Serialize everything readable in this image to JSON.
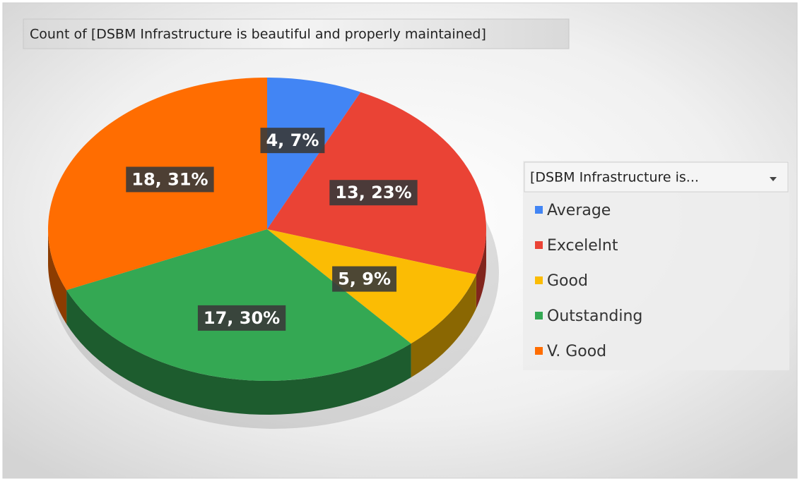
{
  "chart_data": {
    "type": "pie",
    "title": "Count of [DSBM Infrastructure is beautiful and properly maintained]",
    "legend_title": "[DSBM Infrastructure is...",
    "categories": [
      "Average",
      "Excelelnt",
      "Good",
      "Outstanding",
      "V. Good"
    ],
    "values": [
      4,
      13,
      5,
      17,
      18
    ],
    "value_labels": [
      "4, 7%",
      "13, 23%",
      "5, 9%",
      "17, 30%",
      "18, 31%"
    ],
    "colors": [
      "#4285f4",
      "#ea4335",
      "#fbbc04",
      "#34a853",
      "#ff6d01"
    ],
    "legend": "right"
  }
}
